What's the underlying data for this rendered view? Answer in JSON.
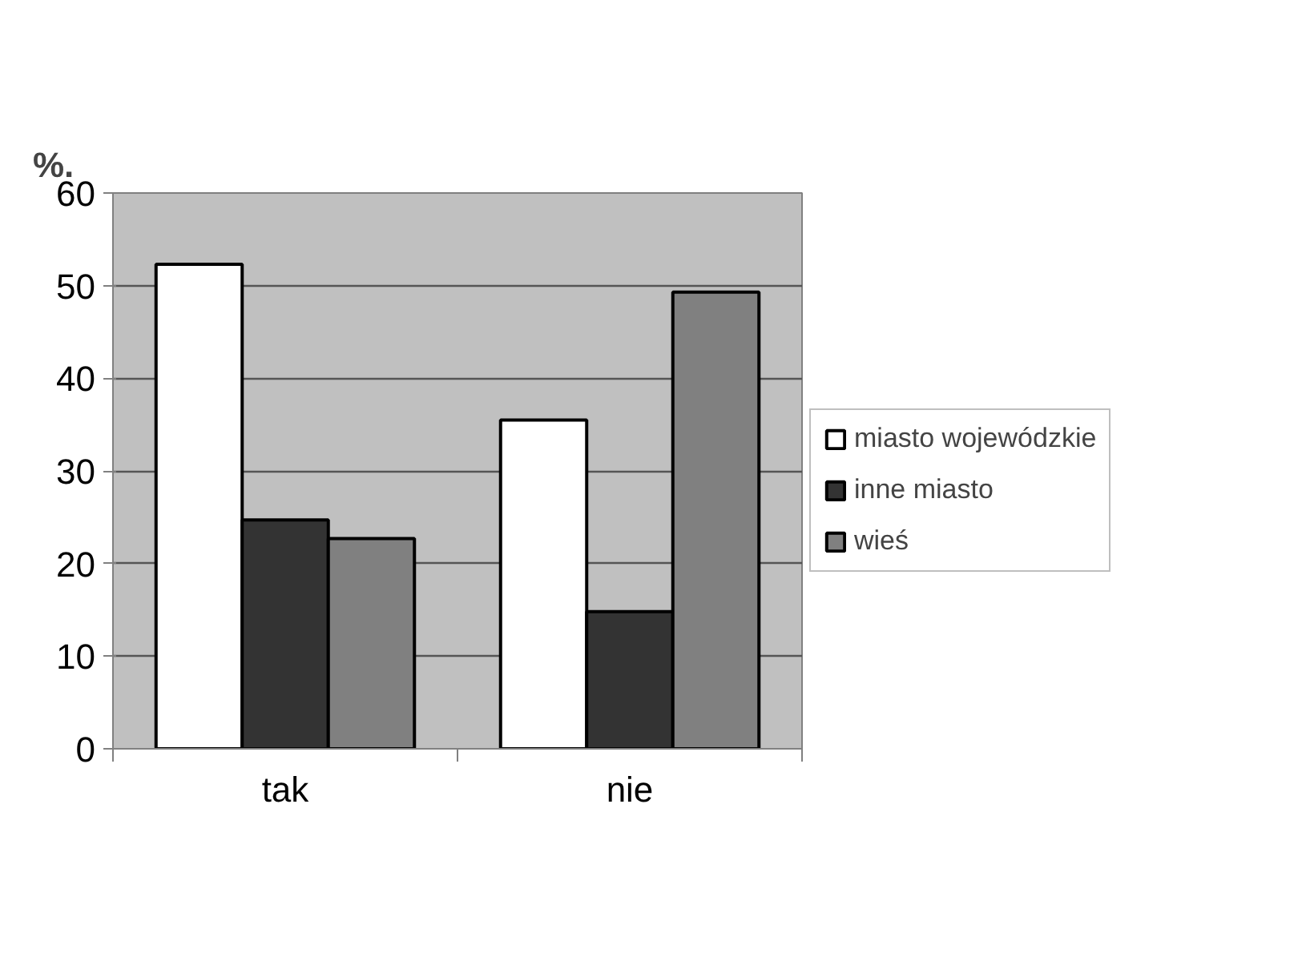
{
  "chart_data": {
    "type": "bar",
    "ylabel": "%.",
    "categories": [
      "tak",
      "nie"
    ],
    "series": [
      {
        "name": "miasto wojewódzkie",
        "color": "#ffffff",
        "values": [
          52.3,
          35.5
        ]
      },
      {
        "name": "inne miasto",
        "color": "#333333",
        "values": [
          24.7,
          14.8
        ]
      },
      {
        "name": "wieś",
        "color": "#808080",
        "values": [
          22.7,
          49.3
        ]
      }
    ],
    "ylim": [
      0,
      60
    ],
    "yticks": [
      0,
      10,
      20,
      30,
      40,
      50,
      60
    ],
    "grid": "y",
    "legend": "right"
  }
}
